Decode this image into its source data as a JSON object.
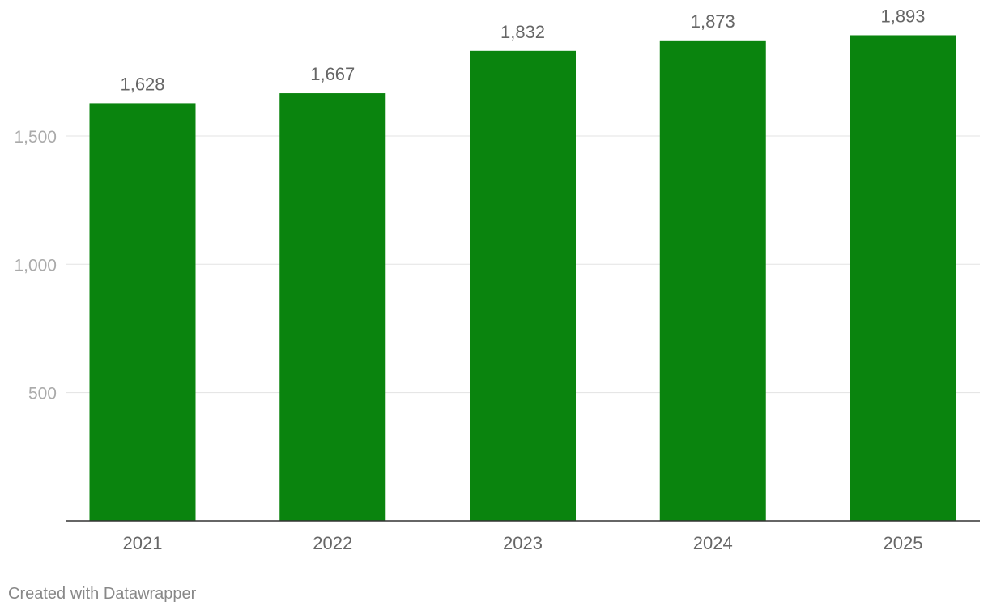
{
  "chart_data": {
    "type": "bar",
    "categories": [
      "2021",
      "2022",
      "2023",
      "2024",
      "2025"
    ],
    "values": [
      1628,
      1667,
      1832,
      1873,
      1893
    ],
    "value_labels": [
      "1,628",
      "1,667",
      "1,832",
      "1,873",
      "1,893"
    ],
    "yticks": [
      500,
      1000,
      1500
    ],
    "ytick_labels": [
      "500",
      "1,000",
      "1,500"
    ],
    "ylim": [
      0,
      2000
    ],
    "grid": true,
    "bar_color": "#0a840e",
    "title": "",
    "xlabel": "",
    "ylabel": ""
  },
  "footer": {
    "credit": "Created with Datawrapper"
  }
}
